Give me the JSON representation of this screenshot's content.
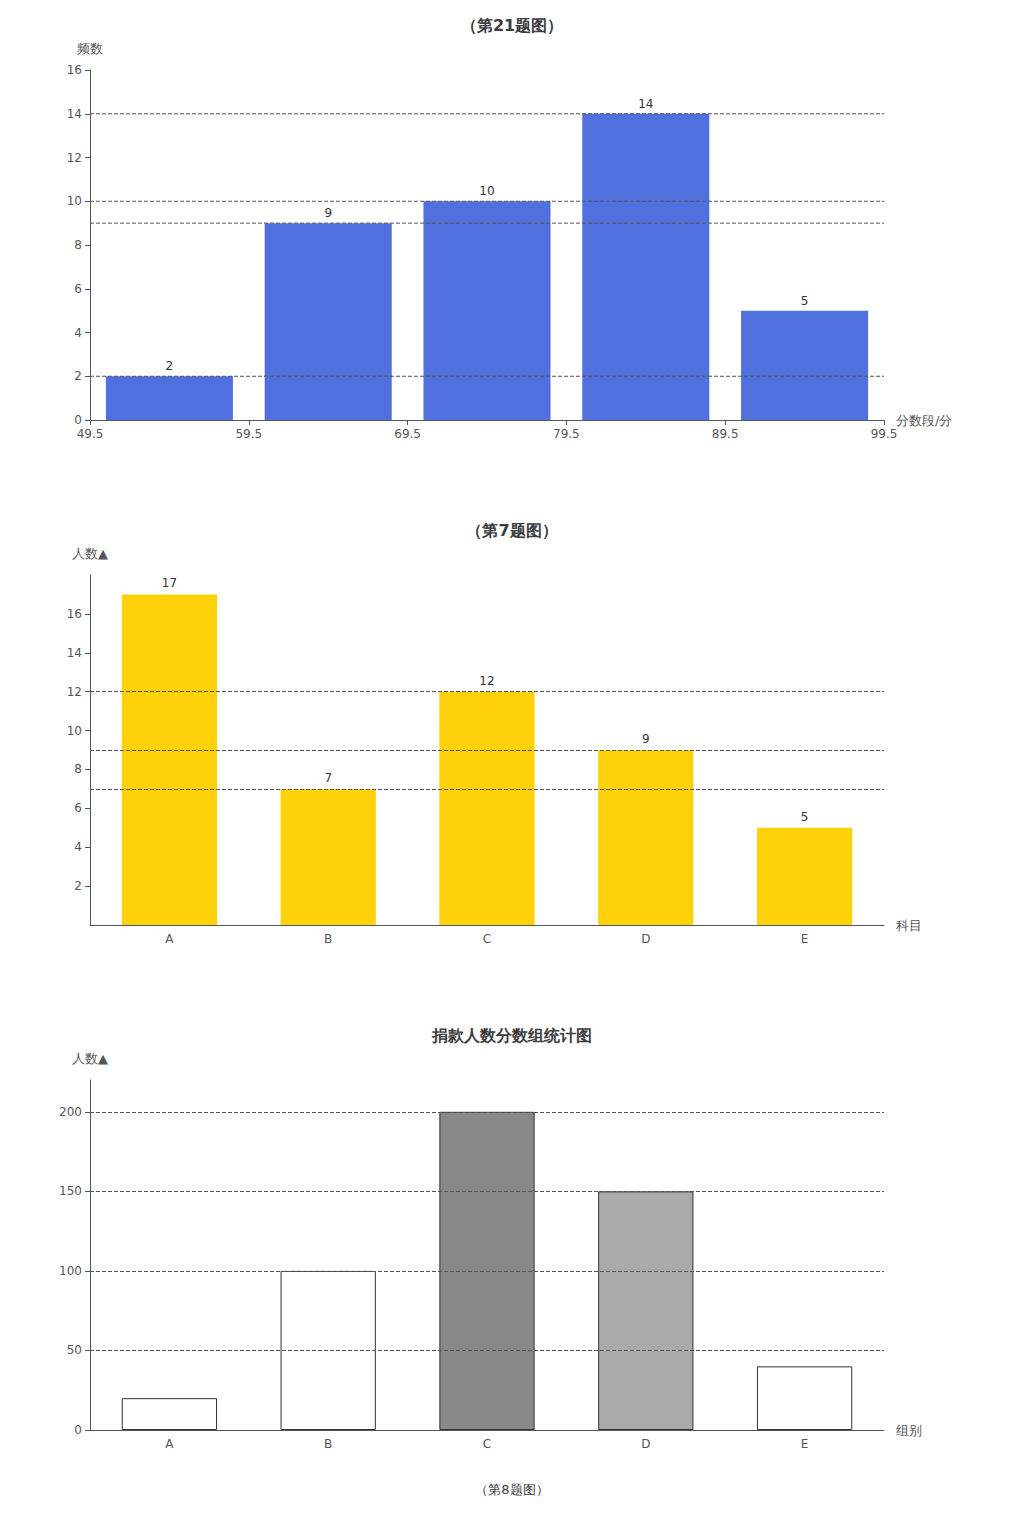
{
  "chart_data": [
    {
      "type": "histogram",
      "title": "（第21题图）",
      "bins": [
        49.5,
        59.5,
        69.5,
        79.5,
        89.5,
        99.5
      ],
      "values": [
        2,
        9,
        10,
        14,
        5
      ],
      "xlabel": "分数段/分",
      "ylabel": "频数",
      "xlim": [
        49.5,
        99.5
      ],
      "xticks": [
        49.5,
        59.5,
        69.5,
        79.5,
        89.5,
        99.5
      ],
      "ylim": [
        0,
        16
      ],
      "yticks": [
        0,
        2,
        4,
        6,
        8,
        10,
        12,
        14,
        16
      ],
      "hlines": [
        2,
        9,
        10,
        14
      ],
      "data_labels": true,
      "grid": false
    },
    {
      "type": "bar",
      "title": "（第7题图）",
      "categories": [
        "A",
        "B",
        "C",
        "D",
        "E"
      ],
      "values": [
        17,
        7,
        12,
        9,
        5
      ],
      "xlabel": "科目",
      "ylabel": "人数▲",
      "ylim": [
        0,
        18
      ],
      "yticks": [
        2,
        4,
        6,
        8,
        10,
        12,
        14,
        16
      ],
      "hlines": [
        7,
        9,
        12
      ],
      "data_labels": true,
      "grid": false
    },
    {
      "type": "bar",
      "title": "捐款人数分数组统计图",
      "annotations": [
        "（第8题图）"
      ],
      "categories": [
        "A",
        "B",
        "C",
        "D",
        "E"
      ],
      "values": [
        20,
        100,
        200,
        150,
        40
      ],
      "colors": [
        "white",
        "white",
        "#888888",
        "#aaaaaa",
        "white"
      ],
      "xlabel": "组别",
      "ylabel": "人数▲",
      "ylim": [
        0,
        220
      ],
      "yticks": [
        0,
        50,
        100,
        150,
        200
      ],
      "hlines": [
        50,
        100,
        150,
        200
      ],
      "data_labels": false,
      "grid": false
    }
  ]
}
